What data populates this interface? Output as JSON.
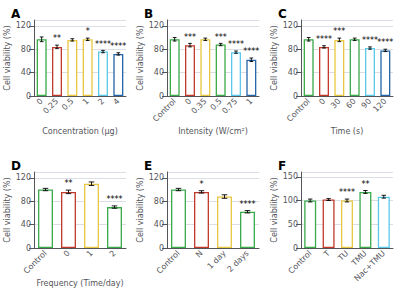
{
  "chart_data": [
    {
      "type": "bar",
      "title": "A",
      "xlabel": "Concentration (μg)",
      "ylabel": "Cell viability (%)",
      "categories": [
        "0",
        "0.25",
        "0.5",
        "1",
        "2",
        "4"
      ],
      "values": [
        97,
        84,
        96,
        97,
        76,
        72
      ],
      "errors": [
        4,
        3,
        2,
        2,
        2,
        2
      ],
      "colors": [
        "#3aaa4a",
        "#c0392b",
        "#e8c840",
        "#e8c840",
        "#5bc8e8",
        "#2464a8"
      ],
      "annotations": [
        {
          "category": "0.25",
          "text": "**"
        },
        {
          "category": "1",
          "text": "*"
        },
        {
          "category": "2",
          "text": "****"
        },
        {
          "category": "4",
          "text": "****"
        }
      ],
      "ylim": [
        0,
        130
      ],
      "yticks": [
        0,
        40,
        80,
        120
      ],
      "grid": true
    },
    {
      "type": "bar",
      "title": "B",
      "xlabel": "Intensity (W/cm²)",
      "ylabel": "Cell viability (%)",
      "categories": [
        "Control",
        "0",
        "0.35",
        "0.5",
        "0.75",
        "1"
      ],
      "values": [
        97,
        87,
        97,
        88,
        75,
        62
      ],
      "errors": [
        3,
        3,
        2,
        2,
        2,
        3
      ],
      "colors": [
        "#3aaa4a",
        "#c0392b",
        "#e8c840",
        "#3aaa4a",
        "#5bc8e8",
        "#2464a8"
      ],
      "annotations": [
        {
          "category": "0",
          "text": "***"
        },
        {
          "category": "0.5",
          "text": "***"
        },
        {
          "category": "0.75",
          "text": "****"
        },
        {
          "category": "1",
          "text": "****"
        }
      ],
      "ylim": [
        0,
        130
      ],
      "yticks": [
        0,
        40,
        80,
        120
      ],
      "grid": true
    },
    {
      "type": "bar",
      "title": "C",
      "xlabel": "Time (s)",
      "ylabel": "Cell viability (%)",
      "categories": [
        "Control",
        "0",
        "30",
        "60",
        "90",
        "120"
      ],
      "values": [
        97,
        84,
        96,
        97,
        82,
        78
      ],
      "errors": [
        3,
        2,
        3,
        2,
        2,
        2
      ],
      "colors": [
        "#3aaa4a",
        "#c0392b",
        "#e8c840",
        "#3aaa4a",
        "#5bc8e8",
        "#2464a8"
      ],
      "annotations": [
        {
          "category": "0",
          "text": "****"
        },
        {
          "category": "30",
          "text": "***"
        },
        {
          "category": "90",
          "text": "****"
        },
        {
          "category": "120",
          "text": "****"
        }
      ],
      "ylim": [
        0,
        130
      ],
      "yticks": [
        0,
        40,
        80,
        120
      ],
      "grid": true
    },
    {
      "type": "bar",
      "title": "D",
      "xlabel": "Frequency (Time/day)",
      "ylabel": "Cell viability (%)",
      "categories": [
        "Control",
        "0",
        "1",
        "2"
      ],
      "values": [
        100,
        96,
        110,
        70
      ],
      "errors": [
        2,
        3,
        3,
        2
      ],
      "colors": [
        "#3aaa4a",
        "#c0392b",
        "#e8c840",
        "#3aaa4a"
      ],
      "annotations": [
        {
          "category": "0",
          "text": "**"
        },
        {
          "category": "2",
          "text": "****"
        }
      ],
      "ylim": [
        0,
        130
      ],
      "yticks": [
        0,
        40,
        80,
        120
      ],
      "grid": true
    },
    {
      "type": "bar",
      "title": "E",
      "ylabel": "Cell viability (%)",
      "categories": [
        "Control",
        "N",
        "1 day",
        "2 days"
      ],
      "values": [
        100,
        96,
        88,
        62
      ],
      "errors": [
        2,
        2,
        3,
        2
      ],
      "colors": [
        "#3aaa4a",
        "#c0392b",
        "#e8c840",
        "#3aaa4a"
      ],
      "annotations": [
        {
          "category": "N",
          "text": "*"
        },
        {
          "category": "2 days",
          "text": "****"
        }
      ],
      "ylim": [
        0,
        130
      ],
      "yticks": [
        0,
        40,
        80,
        120
      ],
      "grid": true
    },
    {
      "type": "bar",
      "title": "F",
      "ylabel": "Cell viability (%)",
      "categories": [
        "Control",
        "T",
        "TU",
        "TMU",
        "Nac+TMU"
      ],
      "values": [
        100,
        102,
        100,
        118,
        108
      ],
      "errors": [
        3,
        2,
        3,
        3,
        3
      ],
      "colors": [
        "#3aaa4a",
        "#c0392b",
        "#e8c840",
        "#3aaa4a",
        "#5bc8e8"
      ],
      "annotations": [
        {
          "category": "TU",
          "text": "****"
        },
        {
          "category": "TMU",
          "text": "**"
        }
      ],
      "ylim": [
        0,
        160
      ],
      "yticks": [
        0,
        50,
        100,
        150
      ],
      "grid": true
    }
  ]
}
